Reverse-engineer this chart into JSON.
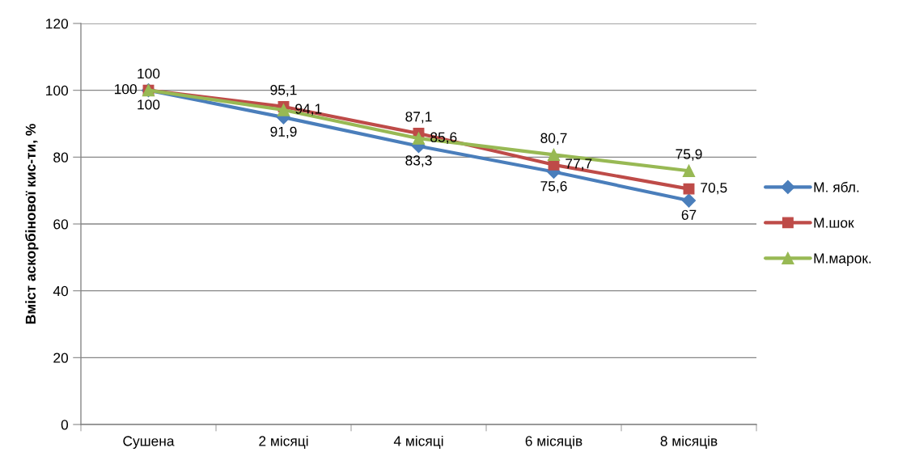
{
  "chart_data": {
    "type": "line",
    "ylabel": "Вміст аскорбінової кис-ти, %",
    "categories": [
      "Сушена",
      "2 місяці",
      "4 місяці",
      "6 місяців",
      "8 місяців"
    ],
    "series": [
      {
        "name": "М. ябл.",
        "color": "#4a7ebb",
        "marker": "diamond",
        "values": [
          100,
          91.9,
          83.3,
          75.6,
          67
        ],
        "value_labels": [
          "100",
          "91,9",
          "83,3",
          "75,6",
          "67"
        ]
      },
      {
        "name": "М.шок",
        "color": "#be4b48",
        "marker": "square",
        "values": [
          100,
          95.1,
          87.1,
          77.7,
          70.5
        ],
        "value_labels": [
          "100",
          "95,1",
          "87,1",
          "77,7",
          "70,5"
        ]
      },
      {
        "name": "М.марок.",
        "color": "#98b954",
        "marker": "triangle",
        "values": [
          100,
          94.1,
          85.6,
          80.7,
          75.9
        ],
        "value_labels": [
          "100",
          "94,1",
          "85,6",
          "80,7",
          "75,9"
        ]
      }
    ],
    "ylim": [
      0,
      120
    ],
    "yticks": [
      0,
      20,
      40,
      60,
      80,
      100,
      120
    ],
    "grid": "y",
    "legend": "right",
    "line_style": "solid"
  }
}
